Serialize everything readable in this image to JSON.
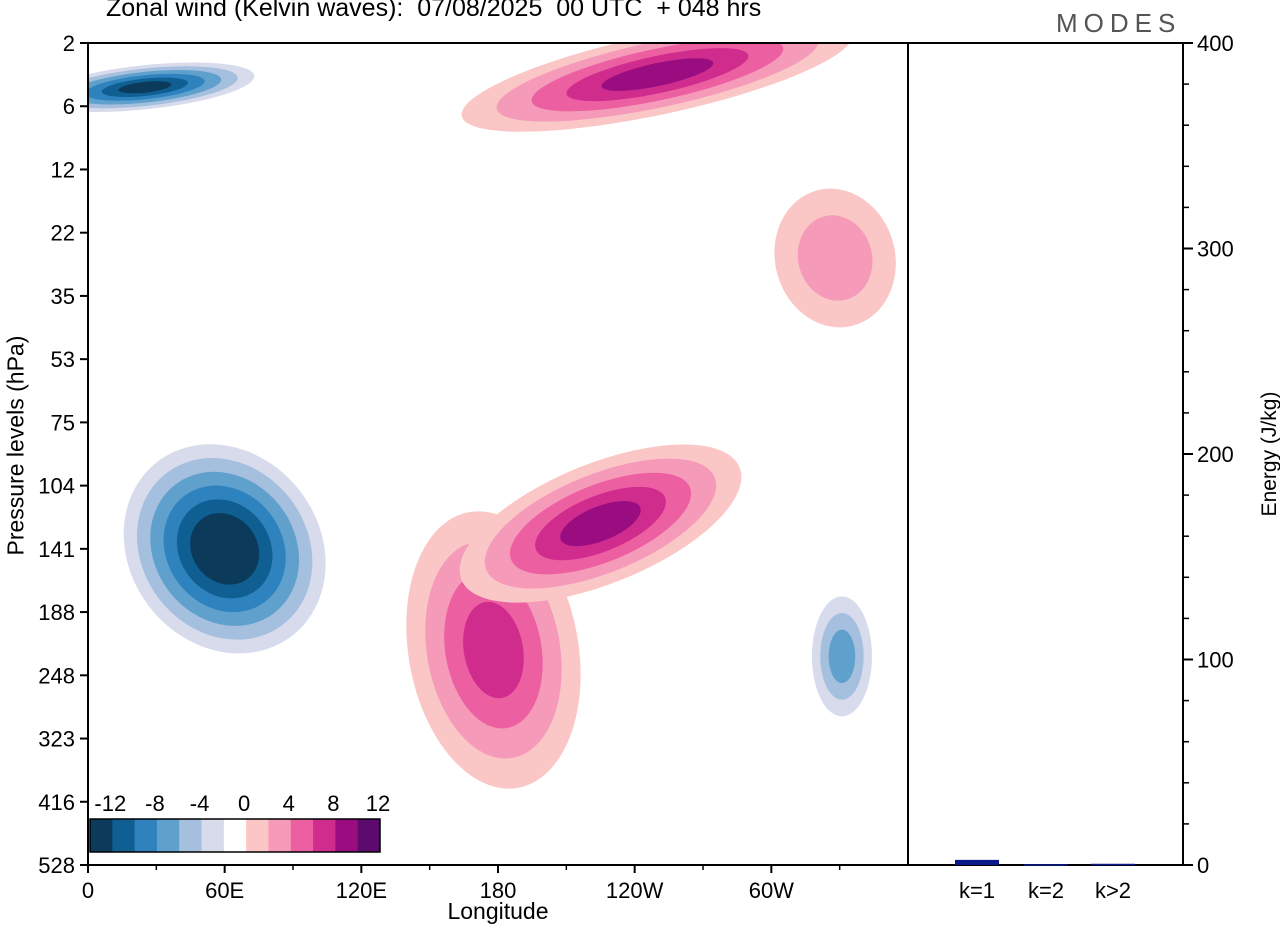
{
  "title": "Zonal wind (Kelvin waves):  07/08/2025  00 UTC  + 048 hrs",
  "logo": "MODES",
  "colors": {
    "scale": [
      "#0b3a5a",
      "#0f5f92",
      "#2e82be",
      "#5fa0cd",
      "#a5bfde",
      "#d7dbec",
      "#ffffff",
      "#fbc6c6",
      "#f59ab9",
      "#ec5fa1",
      "#cf2c8d",
      "#9a0d81",
      "#5c0a6e"
    ],
    "bar": "#0a1a8a",
    "frame": "#000000"
  },
  "chart_data": [
    {
      "type": "heatmap",
      "title": "Zonal wind (Kelvin waves)",
      "xlabel": "Longitude",
      "ylabel": "Pressure levels (hPa)",
      "x_ticks": [
        "0",
        "60E",
        "120E",
        "180",
        "120W",
        "60W"
      ],
      "x_tick_degrees": [
        0,
        60,
        120,
        180,
        240,
        300
      ],
      "x_range": [
        0,
        360
      ],
      "y_ticks": [
        "2",
        "6",
        "12",
        "22",
        "35",
        "53",
        "75",
        "104",
        "141",
        "188",
        "248",
        "323",
        "416",
        "528"
      ],
      "colorbar_labels": [
        "-12",
        "-8",
        "-4",
        "0",
        "4",
        "8",
        "12"
      ],
      "colorbar_levels": [
        -12,
        -10,
        -8,
        -6,
        -4,
        -2,
        0,
        2,
        4,
        6,
        8,
        10,
        12
      ],
      "anomalies": [
        {
          "name": "negative-core-low-level",
          "lon_center": 60,
          "level_index": 8.0,
          "min_value": -14
        },
        {
          "name": "negative-band-upper-left",
          "lon_center": 25,
          "level_index": 0.7,
          "min_value": -12
        },
        {
          "name": "positive-core-low-level",
          "lon_center": 178,
          "level_index": 9.6,
          "max_value": 8
        },
        {
          "name": "positive-core-eastern",
          "lon_center": 225,
          "level_index": 7.6,
          "max_value": 10
        },
        {
          "name": "positive-band-upper",
          "lon_center": 250,
          "level_index": 0.5,
          "max_value": 10
        },
        {
          "name": "negative-blob-far-east",
          "lon_center": 331,
          "level_index": 9.7,
          "min_value": -6
        },
        {
          "name": "positive-patch-upper-east",
          "lon_center": 328,
          "level_index": 3.4,
          "max_value": 5
        }
      ]
    },
    {
      "type": "bar",
      "ylabel": "Energy (J/kg)",
      "categories": [
        "k=1",
        "k=2",
        "k>2"
      ],
      "values": [
        2.5,
        0.4,
        0.6
      ],
      "ylim": [
        0,
        400
      ],
      "y_ticks": [
        "0",
        "100",
        "200",
        "300",
        "400"
      ]
    }
  ]
}
